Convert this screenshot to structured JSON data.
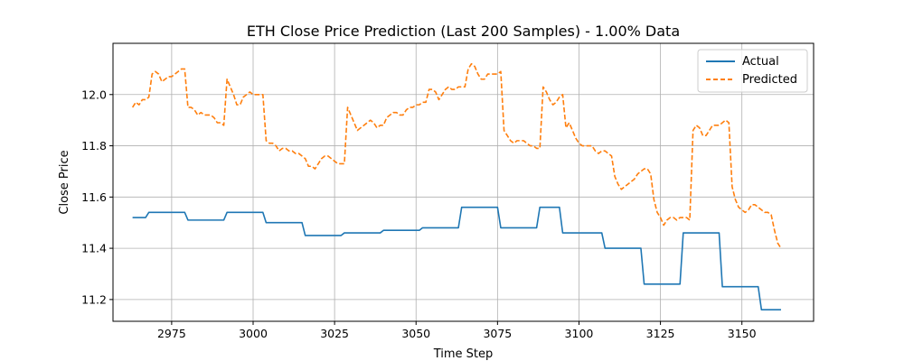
{
  "chart_data": {
    "type": "line",
    "title": "ETH Close Price Prediction (Last 200 Samples) - 1.00% Data",
    "xlabel": "Time Step",
    "ylabel": "Close Price",
    "xlim": [
      2957,
      3172
    ],
    "ylim": [
      11.115,
      12.2
    ],
    "xticks": [
      2975,
      3000,
      3025,
      3050,
      3075,
      3100,
      3125,
      3150
    ],
    "yticks": [
      11.2,
      11.4,
      11.6,
      11.8,
      12.0
    ],
    "xtick_labels": [
      "2975",
      "3000",
      "3025",
      "3050",
      "3075",
      "3100",
      "3125",
      "3150"
    ],
    "ytick_labels": [
      "11.2",
      "11.4",
      "11.6",
      "11.8",
      "12.0"
    ],
    "grid": true,
    "legend_position": "top-right",
    "series": [
      {
        "name": "Actual",
        "color": "#1f77b4",
        "style": "solid",
        "points": [
          [
            2963,
            11.52
          ],
          [
            2967,
            11.52
          ],
          [
            2968,
            11.54
          ],
          [
            2979,
            11.54
          ],
          [
            2980,
            11.51
          ],
          [
            2991,
            11.51
          ],
          [
            2992,
            11.54
          ],
          [
            3003,
            11.54
          ],
          [
            3004,
            11.5
          ],
          [
            3015,
            11.5
          ],
          [
            3016,
            11.45
          ],
          [
            3027,
            11.45
          ],
          [
            3028,
            11.46
          ],
          [
            3039,
            11.46
          ],
          [
            3040,
            11.47
          ],
          [
            3051,
            11.47
          ],
          [
            3052,
            11.48
          ],
          [
            3063,
            11.48
          ],
          [
            3064,
            11.56
          ],
          [
            3075,
            11.56
          ],
          [
            3076,
            11.48
          ],
          [
            3087,
            11.48
          ],
          [
            3088,
            11.56
          ],
          [
            3094,
            11.56
          ],
          [
            3095,
            11.46
          ],
          [
            3107,
            11.46
          ],
          [
            3108,
            11.4
          ],
          [
            3119,
            11.4
          ],
          [
            3120,
            11.26
          ],
          [
            3131,
            11.26
          ],
          [
            3132,
            11.46
          ],
          [
            3143,
            11.46
          ],
          [
            3144,
            11.25
          ],
          [
            3155,
            11.25
          ],
          [
            3156,
            11.16
          ],
          [
            3162,
            11.16
          ]
        ]
      },
      {
        "name": "Predicted",
        "color": "#ff7f0e",
        "style": "dashed",
        "points": [
          [
            2963,
            11.95
          ],
          [
            2964,
            11.97
          ],
          [
            2965,
            11.96
          ],
          [
            2966,
            11.98
          ],
          [
            2967,
            11.98
          ],
          [
            2968,
            11.99
          ],
          [
            2969,
            12.08
          ],
          [
            2970,
            12.09
          ],
          [
            2971,
            12.08
          ],
          [
            2972,
            12.05
          ],
          [
            2973,
            12.06
          ],
          [
            2974,
            12.07
          ],
          [
            2975,
            12.07
          ],
          [
            2976,
            12.08
          ],
          [
            2977,
            12.09
          ],
          [
            2978,
            12.1
          ],
          [
            2979,
            12.1
          ],
          [
            2980,
            11.95
          ],
          [
            2981,
            11.95
          ],
          [
            2982,
            11.94
          ],
          [
            2983,
            11.92
          ],
          [
            2984,
            11.93
          ],
          [
            2985,
            11.92
          ],
          [
            2986,
            11.92
          ],
          [
            2987,
            11.92
          ],
          [
            2988,
            11.91
          ],
          [
            2989,
            11.89
          ],
          [
            2990,
            11.89
          ],
          [
            2991,
            11.88
          ],
          [
            2992,
            12.06
          ],
          [
            2993,
            12.03
          ],
          [
            2994,
            12.0
          ],
          [
            2995,
            11.96
          ],
          [
            2996,
            11.96
          ],
          [
            2997,
            11.99
          ],
          [
            2998,
            12.0
          ],
          [
            2999,
            12.01
          ],
          [
            3000,
            12.0
          ],
          [
            3001,
            12.0
          ],
          [
            3002,
            12.0
          ],
          [
            3003,
            12.0
          ],
          [
            3004,
            11.82
          ],
          [
            3005,
            11.81
          ],
          [
            3006,
            11.81
          ],
          [
            3007,
            11.8
          ],
          [
            3008,
            11.78
          ],
          [
            3009,
            11.79
          ],
          [
            3010,
            11.79
          ],
          [
            3011,
            11.78
          ],
          [
            3012,
            11.78
          ],
          [
            3013,
            11.77
          ],
          [
            3014,
            11.77
          ],
          [
            3015,
            11.76
          ],
          [
            3016,
            11.75
          ],
          [
            3017,
            11.72
          ],
          [
            3018,
            11.72
          ],
          [
            3019,
            11.71
          ],
          [
            3020,
            11.73
          ],
          [
            3021,
            11.75
          ],
          [
            3022,
            11.76
          ],
          [
            3023,
            11.76
          ],
          [
            3024,
            11.75
          ],
          [
            3025,
            11.74
          ],
          [
            3026,
            11.73
          ],
          [
            3027,
            11.73
          ],
          [
            3028,
            11.73
          ],
          [
            3029,
            11.95
          ],
          [
            3030,
            11.92
          ],
          [
            3031,
            11.89
          ],
          [
            3032,
            11.86
          ],
          [
            3033,
            11.87
          ],
          [
            3034,
            11.88
          ],
          [
            3035,
            11.89
          ],
          [
            3036,
            11.9
          ],
          [
            3037,
            11.89
          ],
          [
            3038,
            11.87
          ],
          [
            3039,
            11.88
          ],
          [
            3040,
            11.88
          ],
          [
            3041,
            11.91
          ],
          [
            3042,
            11.92
          ],
          [
            3043,
            11.93
          ],
          [
            3044,
            11.93
          ],
          [
            3045,
            11.92
          ],
          [
            3046,
            11.92
          ],
          [
            3047,
            11.94
          ],
          [
            3048,
            11.95
          ],
          [
            3049,
            11.95
          ],
          [
            3050,
            11.96
          ],
          [
            3051,
            11.96
          ],
          [
            3052,
            11.97
          ],
          [
            3053,
            11.97
          ],
          [
            3054,
            12.02
          ],
          [
            3055,
            12.02
          ],
          [
            3056,
            12.01
          ],
          [
            3057,
            11.98
          ],
          [
            3058,
            12.0
          ],
          [
            3059,
            12.02
          ],
          [
            3060,
            12.03
          ],
          [
            3061,
            12.02
          ],
          [
            3062,
            12.02
          ],
          [
            3063,
            12.03
          ],
          [
            3064,
            12.03
          ],
          [
            3065,
            12.03
          ],
          [
            3066,
            12.1
          ],
          [
            3067,
            12.12
          ],
          [
            3068,
            12.11
          ],
          [
            3069,
            12.08
          ],
          [
            3070,
            12.06
          ],
          [
            3071,
            12.06
          ],
          [
            3072,
            12.08
          ],
          [
            3073,
            12.08
          ],
          [
            3074,
            12.08
          ],
          [
            3075,
            12.08
          ],
          [
            3076,
            12.09
          ],
          [
            3077,
            11.86
          ],
          [
            3078,
            11.84
          ],
          [
            3079,
            11.82
          ],
          [
            3080,
            11.81
          ],
          [
            3081,
            11.82
          ],
          [
            3082,
            11.82
          ],
          [
            3083,
            11.82
          ],
          [
            3084,
            11.81
          ],
          [
            3085,
            11.8
          ],
          [
            3086,
            11.8
          ],
          [
            3087,
            11.79
          ],
          [
            3088,
            11.79
          ],
          [
            3089,
            12.03
          ],
          [
            3090,
            12.01
          ],
          [
            3091,
            11.98
          ],
          [
            3092,
            11.96
          ],
          [
            3093,
            11.97
          ],
          [
            3094,
            11.99
          ],
          [
            3095,
            12.0
          ],
          [
            3096,
            11.87
          ],
          [
            3097,
            11.89
          ],
          [
            3098,
            11.86
          ],
          [
            3099,
            11.83
          ],
          [
            3100,
            11.81
          ],
          [
            3101,
            11.8
          ],
          [
            3102,
            11.8
          ],
          [
            3103,
            11.8
          ],
          [
            3104,
            11.8
          ],
          [
            3105,
            11.78
          ],
          [
            3106,
            11.77
          ],
          [
            3107,
            11.78
          ],
          [
            3108,
            11.78
          ],
          [
            3109,
            11.77
          ],
          [
            3110,
            11.76
          ],
          [
            3111,
            11.68
          ],
          [
            3112,
            11.65
          ],
          [
            3113,
            11.63
          ],
          [
            3114,
            11.64
          ],
          [
            3115,
            11.65
          ],
          [
            3116,
            11.66
          ],
          [
            3117,
            11.67
          ],
          [
            3118,
            11.69
          ],
          [
            3119,
            11.7
          ],
          [
            3120,
            11.71
          ],
          [
            3121,
            11.71
          ],
          [
            3122,
            11.69
          ],
          [
            3123,
            11.59
          ],
          [
            3124,
            11.54
          ],
          [
            3125,
            11.52
          ],
          [
            3126,
            11.49
          ],
          [
            3127,
            11.51
          ],
          [
            3128,
            11.52
          ],
          [
            3129,
            11.52
          ],
          [
            3130,
            11.51
          ],
          [
            3131,
            11.52
          ],
          [
            3132,
            11.52
          ],
          [
            3133,
            11.52
          ],
          [
            3134,
            11.51
          ],
          [
            3135,
            11.86
          ],
          [
            3136,
            11.88
          ],
          [
            3137,
            11.87
          ],
          [
            3138,
            11.84
          ],
          [
            3139,
            11.84
          ],
          [
            3140,
            11.86
          ],
          [
            3141,
            11.88
          ],
          [
            3142,
            11.88
          ],
          [
            3143,
            11.88
          ],
          [
            3144,
            11.89
          ],
          [
            3145,
            11.9
          ],
          [
            3146,
            11.89
          ],
          [
            3147,
            11.64
          ],
          [
            3148,
            11.59
          ],
          [
            3149,
            11.56
          ],
          [
            3150,
            11.55
          ],
          [
            3151,
            11.54
          ],
          [
            3152,
            11.55
          ],
          [
            3153,
            11.57
          ],
          [
            3154,
            11.57
          ],
          [
            3155,
            11.56
          ],
          [
            3156,
            11.55
          ],
          [
            3157,
            11.54
          ],
          [
            3158,
            11.54
          ],
          [
            3159,
            11.53
          ],
          [
            3160,
            11.47
          ],
          [
            3161,
            11.42
          ],
          [
            3162,
            11.4
          ]
        ]
      }
    ]
  }
}
